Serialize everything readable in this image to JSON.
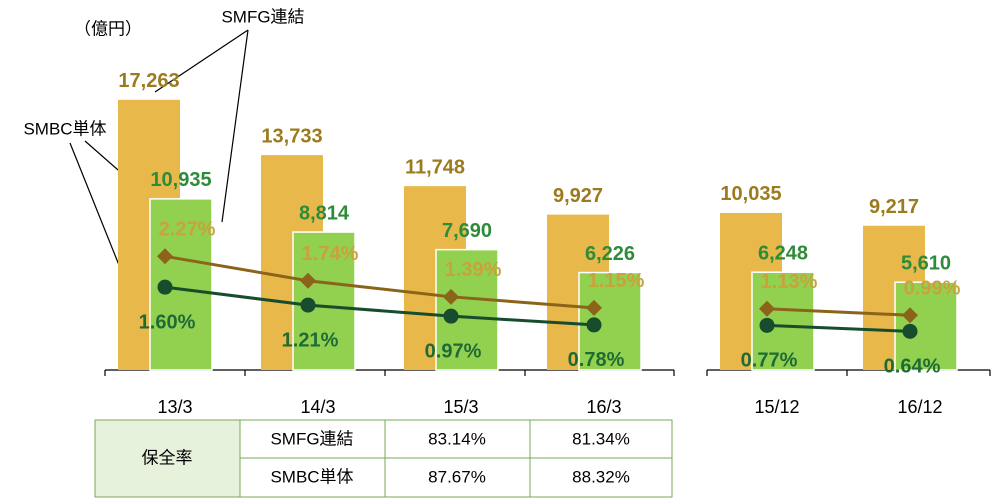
{
  "chart_data": {
    "type": "bar",
    "unit_label": "（億円）",
    "annotations": [
      "SMFG連結",
      "SMBC単体"
    ],
    "categories": [
      "13/3",
      "14/3",
      "15/3",
      "16/3",
      null,
      "15/12",
      "16/12"
    ],
    "ylim": [
      0,
      20000
    ],
    "y2lim": [
      -0.2,
      6.6
    ],
    "series": [
      {
        "color": "#e8b84a",
        "label_color": "#9c7a1e",
        "values": [
          17263,
          13733,
          11748,
          9927,
          null,
          10035,
          9217
        ],
        "value_labels": [
          "17,263",
          "13,733",
          "11,748",
          "9,927",
          null,
          "10,035",
          "9,217"
        ]
      },
      {
        "color": "#92d050",
        "label_color": "#2e8b3a",
        "values": [
          10935,
          8814,
          7690,
          6226,
          null,
          6248,
          5610
        ],
        "value_labels": [
          "10,935",
          "8,814",
          "7,690",
          "6,226",
          null,
          "6,248",
          "5,610"
        ]
      },
      {
        "type": "line",
        "axis": "y2",
        "color": "#8b6419",
        "label_color": "#c9a23c",
        "marker": "diamond",
        "values": [
          2.27,
          1.74,
          1.39,
          1.15,
          null,
          1.13,
          0.99
        ],
        "value_labels": [
          "2.27%",
          "1.74%",
          "1.39%",
          "1.15%",
          null,
          "1.13%",
          "0.99%"
        ]
      },
      {
        "type": "line",
        "axis": "y2",
        "color": "#174d2c",
        "label_color": "#1f6b35",
        "marker": "circle",
        "values": [
          1.6,
          1.21,
          0.97,
          0.78,
          null,
          0.77,
          0.64
        ],
        "value_labels": [
          "1.60%",
          "1.21%",
          "0.97%",
          "0.78%",
          null,
          "0.77%",
          "0.64%"
        ]
      }
    ]
  },
  "table": {
    "header": "保全率",
    "rows": [
      [
        "SMFG連結",
        "83.14%",
        "81.34%"
      ],
      [
        "SMBC単体",
        "87.67%",
        "88.32%"
      ]
    ]
  }
}
